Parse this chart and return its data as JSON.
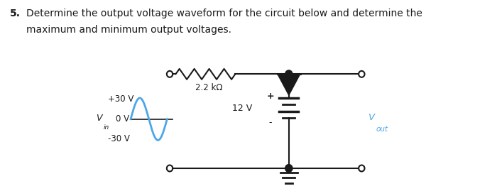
{
  "background_color": "#ffffff",
  "question_number": "5.",
  "question_text_line1": "Determine the output voltage waveform for the circuit below and determine the",
  "question_text_line2": "maximum and minimum output voltages.",
  "resistor_label": "2.2 kΩ",
  "voltage_source_label": "12 V",
  "vin_label": "V",
  "vin_sub": "in",
  "vout_label": "V",
  "vout_sub": "out",
  "plus30": "+30 V",
  "zero": "0 V",
  "minus30": "-30 V",
  "plus_sign": "+",
  "minus_sign": "-",
  "line_color": "#1a1a1a",
  "waveform_color": "#4da6e8",
  "vout_color": "#4da6e8",
  "text_color": "#1a1a1a",
  "fig_width": 7.0,
  "fig_height": 2.76
}
